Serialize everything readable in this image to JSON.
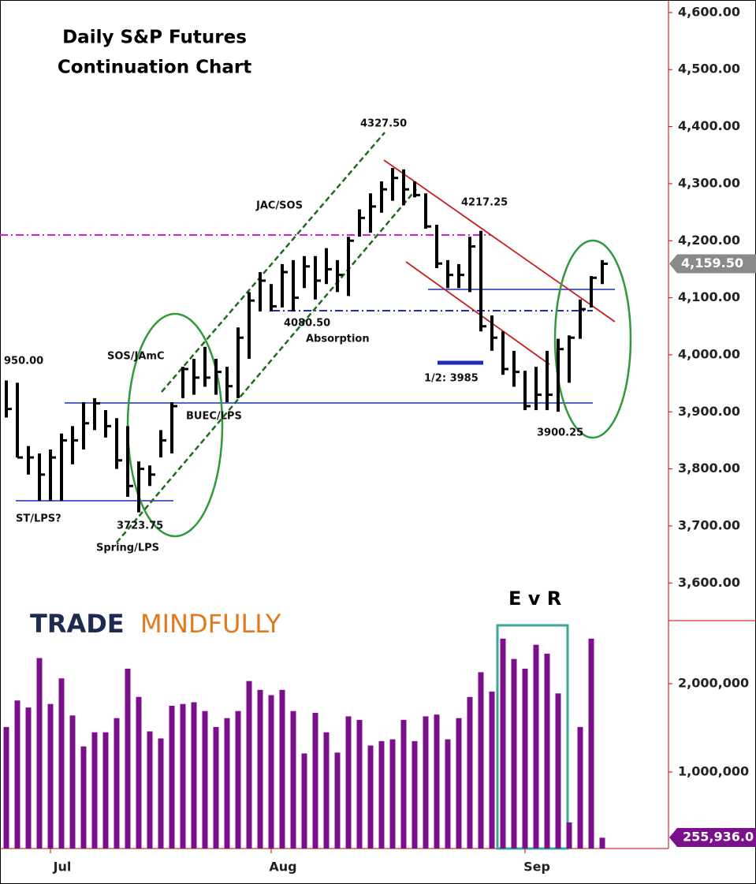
{
  "chart_data": [
    {
      "type": "ohlc",
      "title": [
        "Daily S&P Futures",
        "Continuation Chart"
      ],
      "categories": [
        null,
        null,
        null,
        null,
        "Jul",
        null,
        null,
        null,
        null,
        null,
        null,
        null,
        null,
        null,
        null,
        null,
        null,
        null,
        null,
        null,
        null,
        null,
        null,
        null,
        "Aug",
        null,
        null,
        null,
        null,
        null,
        null,
        null,
        null,
        null,
        null,
        null,
        null,
        null,
        null,
        null,
        null,
        null,
        null,
        null,
        null,
        null,
        null,
        "Sep",
        null,
        null,
        null,
        null,
        null,
        null,
        null
      ],
      "high": [
        3955,
        3951,
        3840,
        3827,
        3834,
        3862,
        3875,
        3917,
        3924,
        3903,
        3889,
        3875,
        3813,
        3806,
        3868,
        3917,
        3979,
        3993,
        4014,
        3993,
        3979,
        4048,
        4110,
        4145,
        4124,
        4159,
        4166,
        4173,
        4173,
        4187,
        4166,
        4207,
        4255,
        4283,
        4304,
        4327.5,
        4325,
        4304,
        4283,
        4228,
        4166,
        4159,
        4207,
        4217.25,
        4069,
        4041,
        4007,
        3972,
        3979,
        4007,
        4028,
        4034,
        4097,
        4138,
        4166
      ],
      "low": [
        3890,
        3820,
        3790,
        3744,
        3744,
        3744,
        3808,
        3834,
        3868,
        3855,
        3800,
        3751,
        3723.75,
        3770,
        3820,
        3827,
        3924,
        3930,
        3944,
        3930,
        3917,
        3924,
        3993,
        4076,
        4076,
        4083,
        4076,
        4117,
        4097,
        4124,
        4110,
        4103,
        4207,
        4214,
        4249,
        4270,
        4262,
        4276,
        4221,
        4152,
        4117,
        4117,
        4110,
        4041,
        4007,
        3965,
        3944,
        3903,
        3903,
        3903,
        3900.25,
        3951,
        4028,
        4083,
        4124
      ],
      "close": [
        3905,
        3820,
        3820,
        3790,
        3820,
        3850,
        3850,
        3880,
        3915,
        3875,
        3815,
        3770,
        3800,
        3790,
        3850,
        3910,
        3975,
        3960,
        3960,
        3970,
        3945,
        4030,
        4095,
        4130,
        4085,
        4145,
        4100,
        4155,
        4130,
        4150,
        4140,
        4200,
        4240,
        4260,
        4290,
        4310,
        4290,
        4280,
        4225,
        4160,
        4140,
        4140,
        4190,
        4050,
        4030,
        3975,
        3970,
        3910,
        3930,
        3930,
        4010,
        4030,
        4080,
        4135,
        4159.5
      ],
      "last_label": "4,159.50",
      "color": "#000000",
      "ylim": [
        3534,
        4622
      ],
      "yticks": [
        {
          "value": 3600,
          "label": "3,600.00"
        },
        {
          "value": 3700,
          "label": "3,700.00"
        },
        {
          "value": 3800,
          "label": "3,800.00"
        },
        {
          "value": 3900,
          "label": "3,900.00"
        },
        {
          "value": 4000,
          "label": "4,000.00"
        },
        {
          "value": 4100,
          "label": "4,100.00"
        },
        {
          "value": 4200,
          "label": "4,200.00"
        },
        {
          "value": 4300,
          "label": "4,300.00"
        },
        {
          "value": 4400,
          "label": "4,400.00"
        },
        {
          "value": 4500,
          "label": "4,500.00"
        },
        {
          "value": 4600,
          "label": "4,600.00"
        }
      ],
      "annotations": [
        "950.00",
        "SOS/JAmC",
        "BUEC/LPS",
        "ST/LPS?",
        "3723.75",
        "Spring/LPS",
        "JAC/SOS",
        "4327.50",
        "4080.50",
        "Absorption",
        "4217.25",
        "1/2: 3985",
        "3900.25",
        "E v R"
      ],
      "logo": [
        "TRADE",
        "MINDFULLY"
      ]
    },
    {
      "type": "bar",
      "values": [
        1510000,
        1810000,
        1730000,
        2290000,
        1770000,
        2060000,
        1640000,
        1290000,
        1450000,
        1450000,
        1610000,
        2170000,
        1850000,
        1460000,
        1380000,
        1750000,
        1770000,
        1790000,
        1690000,
        1510000,
        1610000,
        1690000,
        2030000,
        1930000,
        1870000,
        1930000,
        1690000,
        1210000,
        1670000,
        1450000,
        1220000,
        1630000,
        1590000,
        1300000,
        1350000,
        1370000,
        1590000,
        1350000,
        1630000,
        1650000,
        1370000,
        1610000,
        1850000,
        2130000,
        1910000,
        2510000,
        2280000,
        2170000,
        2440000,
        2340000,
        1890000,
        430000,
        1510000,
        2510000,
        255936
      ],
      "value_labels": [
        null,
        null,
        null,
        null,
        null,
        null,
        null,
        null,
        null,
        null,
        null,
        null,
        null,
        null,
        null,
        null,
        null,
        null,
        null,
        null,
        null,
        null,
        null,
        null,
        null,
        null,
        null,
        null,
        null,
        null,
        null,
        null,
        null,
        null,
        null,
        null,
        null,
        null,
        null,
        null,
        null,
        null,
        null,
        null,
        null,
        null,
        null,
        null,
        null,
        null,
        null,
        null,
        null,
        null,
        "255,936.0"
      ],
      "color": "#7b0f8c",
      "ylim": [
        134000,
        2714000
      ],
      "yticks": [
        {
          "value": 1000000,
          "label": "1,000,000"
        },
        {
          "value": 2000000,
          "label": "2,000,000"
        }
      ]
    }
  ]
}
